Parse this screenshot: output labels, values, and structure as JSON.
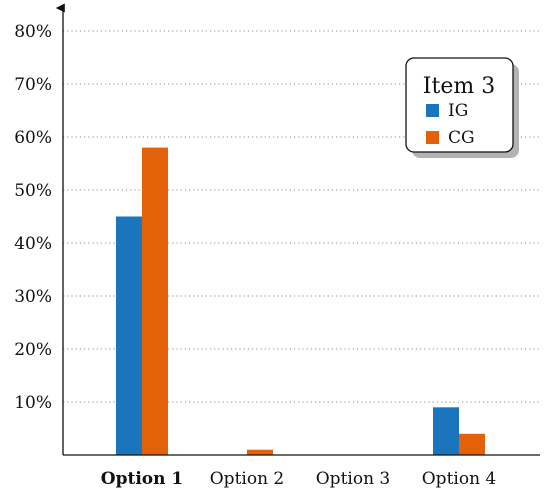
{
  "chart_data": {
    "type": "bar",
    "categories": [
      "Option 1",
      "Option 2",
      "Option 3",
      "Option 4"
    ],
    "bold_category": "Option 1",
    "series": [
      {
        "name": "IG",
        "values": [
          45,
          0,
          0,
          9
        ],
        "color": "#1a75bc"
      },
      {
        "name": "CG",
        "values": [
          58,
          1,
          0,
          4
        ],
        "color": "#e36209"
      }
    ],
    "y_ticks": [
      10,
      20,
      30,
      40,
      50,
      60,
      70,
      80
    ],
    "y_tick_labels": [
      "10%",
      "20%",
      "30%",
      "40%",
      "50%",
      "60%",
      "70%",
      "80%"
    ],
    "ylim": [
      0,
      80
    ],
    "grid": "horizontal-dotted",
    "legend": {
      "title": "Item 3",
      "placement": "top-right"
    }
  }
}
